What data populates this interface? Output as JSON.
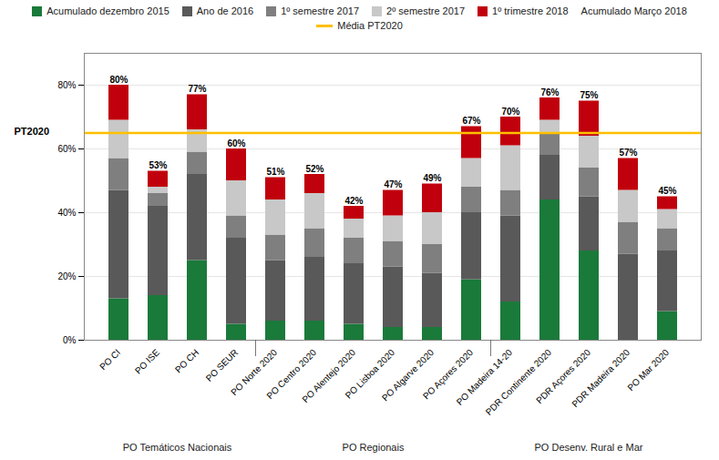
{
  "chart_data": {
    "type": "bar",
    "stacked": true,
    "grid": true,
    "legend": "top",
    "categories": [
      "PO CI",
      "PO ISE",
      "PO CH",
      "PO SEUR",
      "PO Norte 2020",
      "PO Centro 2020",
      "PO Alentejo 2020",
      "PO Lisboa 2020",
      "PO Algarve 2020",
      "PO Açores 2020",
      "PO Madeira 14-20",
      "PDR Continente 2020",
      "PDR Açores 2020",
      "PDR Madeira 2020",
      "PO Mar 2020"
    ],
    "series": [
      {
        "name": "Acumulado dezembro 2015",
        "color": "#1a7a3a",
        "values": [
          13,
          14,
          25,
          5,
          6,
          6,
          5,
          4,
          4,
          19,
          12,
          44,
          28,
          0,
          9
        ]
      },
      {
        "name": "Ano de 2016",
        "color": "#595959",
        "values": [
          34,
          28,
          27,
          27,
          19,
          20,
          19,
          19,
          17,
          21,
          27,
          14,
          17,
          27,
          19
        ]
      },
      {
        "name": "1º semestre 2017",
        "color": "#7f7f7f",
        "values": [
          10,
          4,
          7,
          7,
          8,
          9,
          8,
          8,
          9,
          8,
          8,
          7,
          9,
          10,
          7
        ]
      },
      {
        "name": "2º semestre 2017",
        "color": "#c8c8c8",
        "values": [
          12,
          2,
          7,
          11,
          11,
          11,
          6,
          8,
          10,
          9,
          14,
          4,
          10,
          10,
          6
        ]
      },
      {
        "name": "1º trimestre 2018",
        "color": "#c0000c",
        "values": [
          11,
          5,
          11,
          10,
          7,
          6,
          4,
          8,
          9,
          10,
          9,
          7,
          11,
          10,
          4
        ]
      }
    ],
    "totals": {
      "name": "Acumulado Março 2018",
      "values": [
        80,
        53,
        77,
        60,
        51,
        52,
        42,
        47,
        49,
        67,
        70,
        76,
        75,
        57,
        45
      ],
      "value_labels": [
        "80%",
        "53%",
        "77%",
        "60%",
        "51%",
        "52%",
        "42%",
        "47%",
        "49%",
        "67%",
        "70%",
        "76%",
        "75%",
        "57%",
        "45%"
      ]
    },
    "reference_line": {
      "name": "Média PT2020",
      "value": 65,
      "color": "#ffc000",
      "label": "PT2020"
    },
    "groups": [
      {
        "name": "PO Temáticos Nacionais",
        "categories": [
          "PO CI",
          "PO ISE",
          "PO CH",
          "PO SEUR"
        ]
      },
      {
        "name": "PO Regionais",
        "categories": [
          "PO Norte 2020",
          "PO Centro 2020",
          "PO Alentejo 2020",
          "PO Lisboa 2020",
          "PO Algarve 2020",
          "PO Açores 2020"
        ]
      },
      {
        "name": "PO Desenv. Rural e Mar",
        "categories": [
          "PO Madeira 14-20",
          "PDR Continente 2020",
          "PDR Açores 2020",
          "PDR Madeira 2020",
          "PO Mar 2020"
        ]
      }
    ],
    "ylim": [
      0,
      90
    ],
    "yticks": [
      {
        "value": 0,
        "label": "0%"
      },
      {
        "value": 20,
        "label": "20%"
      },
      {
        "value": 40,
        "label": "40%"
      },
      {
        "value": 60,
        "label": "60%"
      },
      {
        "value": 80,
        "label": "80%"
      }
    ]
  }
}
